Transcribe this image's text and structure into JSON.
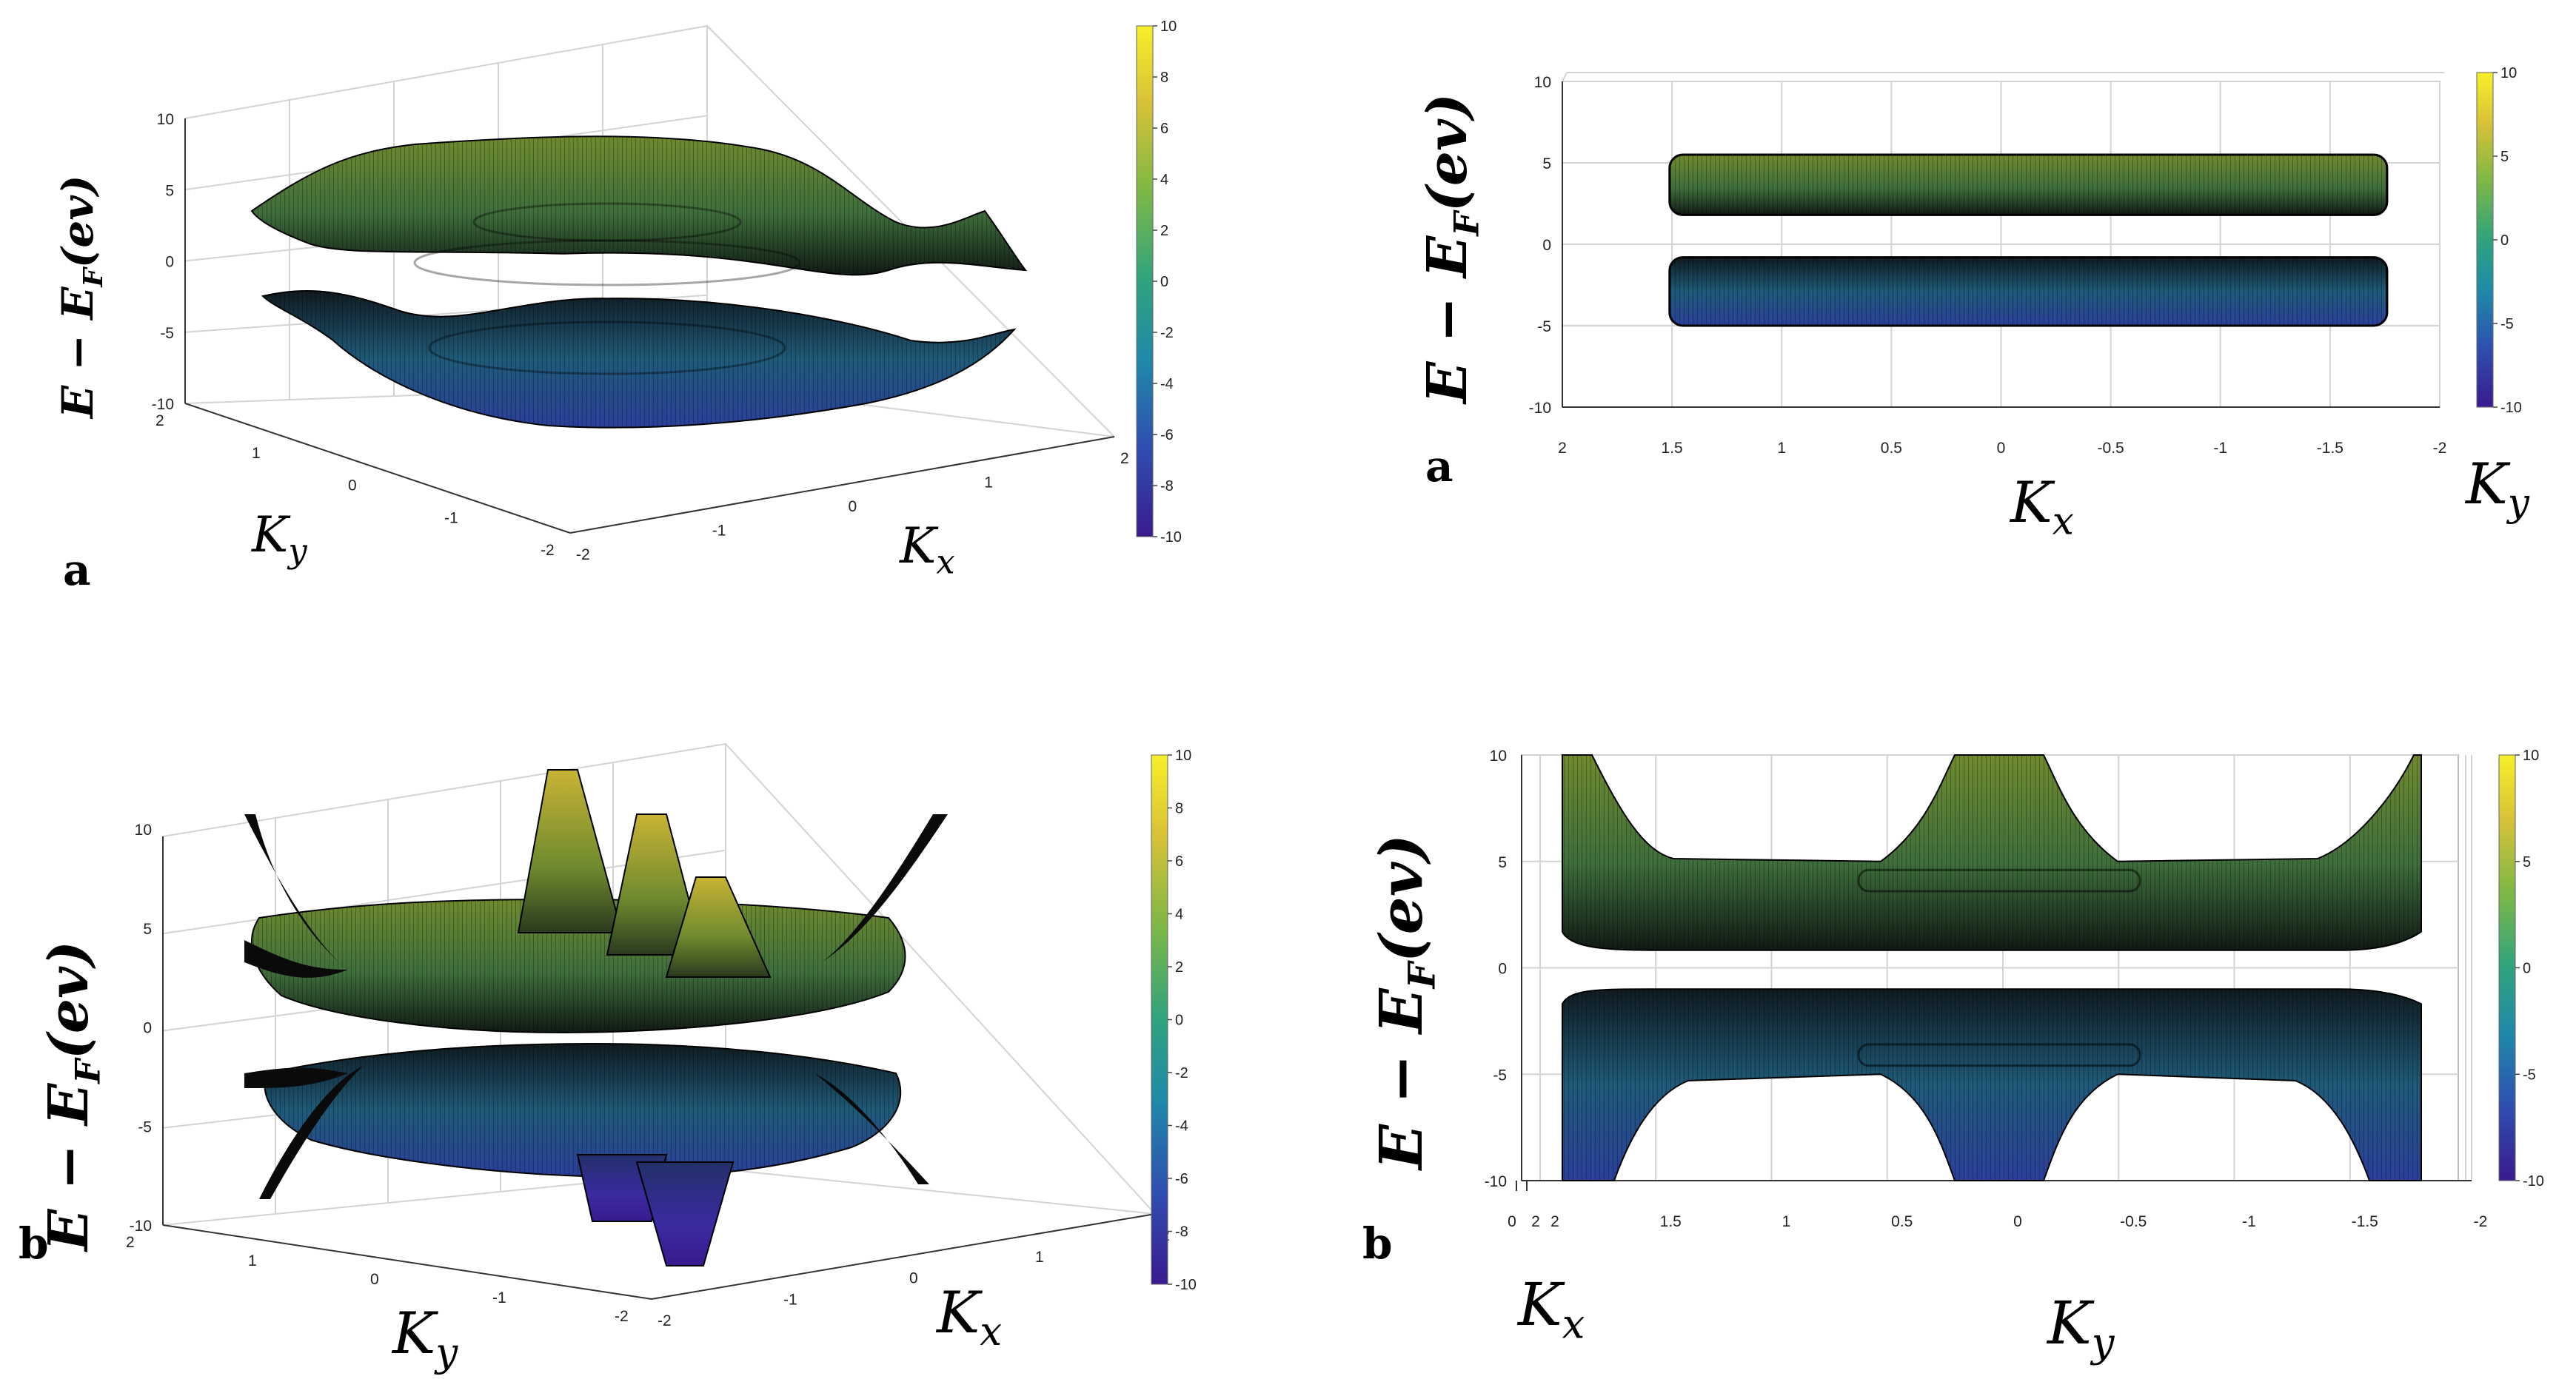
{
  "colors": {
    "colormap": [
      "#3a1a8f",
      "#2f4db0",
      "#1f8aa8",
      "#2fa37e",
      "#7fb845",
      "#d9c237",
      "#f7ef2a"
    ],
    "surface_dark": "#0a0a0a",
    "grid": "#d3d3d3"
  },
  "chart_data": [
    {
      "type": "surface",
      "panel_label": "a",
      "view": "3d",
      "zlabel": "E − E_F(ev)",
      "xlabel": "K_x",
      "ylabel": "K_y",
      "zlim": [
        -10,
        10
      ],
      "z_ticks": [
        "10",
        "5",
        "0",
        "-5",
        "-10"
      ],
      "kx_ticks": [
        "-2",
        "-1",
        "0",
        "1",
        "2"
      ],
      "ky_ticks": [
        "2",
        "1",
        "0",
        "-1",
        "-2"
      ],
      "bands": [
        {
          "name": "",
          "z_max": 5.5,
          "z_min": 1
        },
        {
          "name": "",
          "z_max": -1,
          "z_min": -5.5
        }
      ],
      "colorbar": {
        "min": -10,
        "max": 10,
        "ticks": [
          "10",
          "8",
          "6",
          "4",
          "2",
          "0",
          "-2",
          "-4",
          "-6",
          "-8",
          "-10"
        ]
      }
    },
    {
      "type": "surface",
      "panel_label": "a",
      "view": "side",
      "zlabel": "E − E_F(ev)",
      "xlabel": "K_x",
      "ylabel": "K_y",
      "zlim": [
        -10,
        10
      ],
      "z_ticks": [
        "10",
        "5",
        "0",
        "-5",
        "-10"
      ],
      "x_ticks": [
        "2",
        "1.5",
        "1",
        "0.5",
        "0",
        "-0.5",
        "-1",
        "-1.5",
        "-2"
      ],
      "bands": [
        {
          "name": "",
          "z_top": 5.5,
          "z_bottom": 1.8
        },
        {
          "name": "",
          "z_top": -0.8,
          "z_bottom": -5
        }
      ],
      "colorbar": {
        "min": -10,
        "max": 10,
        "ticks": [
          "10",
          "5",
          "0",
          "-5",
          "-10"
        ]
      }
    },
    {
      "type": "surface",
      "panel_label": "b",
      "view": "3d",
      "zlabel": "E − E_F(ev)",
      "xlabel": "K_x",
      "ylabel": "K_y",
      "zlim": [
        -10,
        10
      ],
      "z_ticks": [
        "10",
        "5",
        "0",
        "-5",
        "-10"
      ],
      "kx_ticks": [
        "-2",
        "-1",
        "0",
        "1",
        "2"
      ],
      "ky_ticks": [
        "2",
        "1",
        "0",
        "-1",
        "-2"
      ],
      "bands": [
        {
          "name": "",
          "z_max": 10,
          "z_min": 1
        },
        {
          "name": "",
          "z_max": -1,
          "z_min": -10
        }
      ],
      "colorbar": {
        "min": -10,
        "max": 10,
        "ticks": [
          "10",
          "8",
          "6",
          "4",
          "2",
          "0",
          "-2",
          "-4",
          "-6",
          "-8",
          "-10"
        ]
      }
    },
    {
      "type": "surface",
      "panel_label": "b",
      "view": "side",
      "zlabel": "E − E_F(ev)",
      "xlabel": "K_x",
      "ylabel": "K_y",
      "zlim": [
        -10,
        10
      ],
      "z_ticks": [
        "10",
        "5",
        "0",
        "-5",
        "-10"
      ],
      "x_ticks": [
        "2",
        "1.5",
        "1",
        "0.5",
        "0",
        "-0.5",
        "-1",
        "-1.5",
        "-2"
      ],
      "kx_ticks": [
        "0",
        "2"
      ],
      "bands": [
        {
          "name": "",
          "z_top": 10,
          "z_plateau": 5,
          "z_bottom": 1
        },
        {
          "name": "",
          "z_top": -1,
          "z_plateau": -5,
          "z_bottom": -10
        }
      ],
      "colorbar": {
        "min": -10,
        "max": 10,
        "ticks": [
          "10",
          "5",
          "0",
          "-5",
          "-10"
        ]
      }
    }
  ]
}
